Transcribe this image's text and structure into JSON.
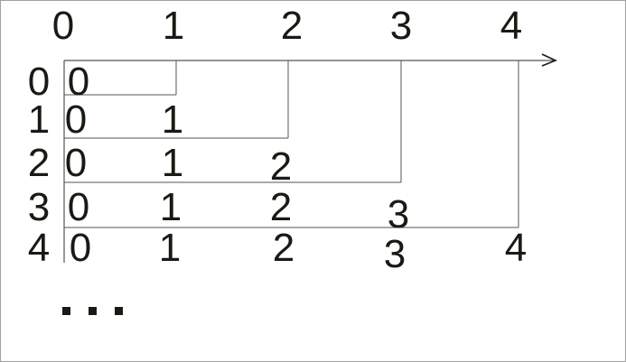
{
  "column_labels": [
    "0",
    "1",
    "2",
    "3",
    "4"
  ],
  "row_labels": [
    "0",
    "1",
    "2",
    "3",
    "4"
  ],
  "rows": [
    [
      "0"
    ],
    [
      "0",
      "1"
    ],
    [
      "0",
      "1",
      "2"
    ],
    [
      "0",
      "1",
      "2",
      "3"
    ],
    [
      "0",
      "1",
      "2",
      "3",
      "4"
    ]
  ],
  "arrow_glyph": ">",
  "ellipsis_count": 3,
  "colors": {
    "text": "#1a1a14",
    "lines": "#555555",
    "border": "#a0a0a0"
  }
}
